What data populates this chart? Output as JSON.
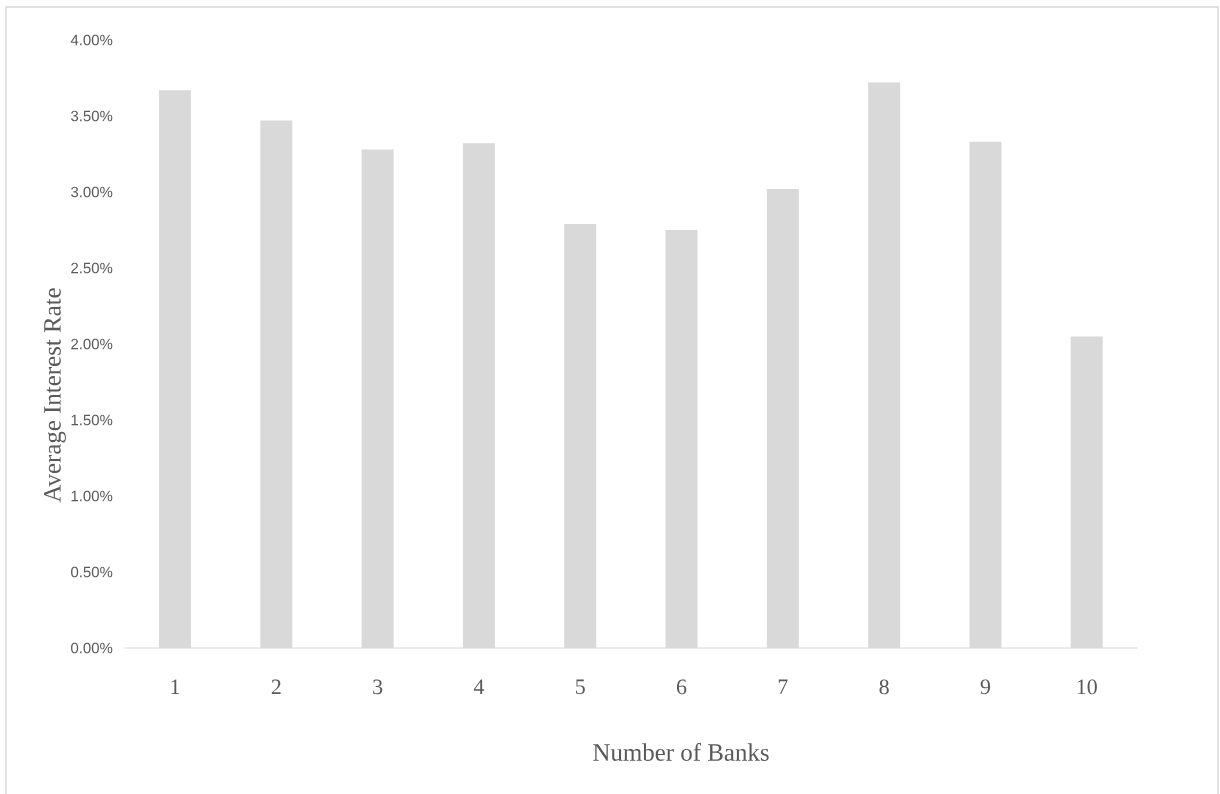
{
  "chart_data": {
    "type": "bar",
    "xlabel": "Number of Banks",
    "ylabel": "Average Interest Rate",
    "categories": [
      "1",
      "2",
      "3",
      "4",
      "5",
      "6",
      "7",
      "8",
      "9",
      "10"
    ],
    "values": [
      3.67,
      3.47,
      3.28,
      3.32,
      2.79,
      2.75,
      3.02,
      3.72,
      3.33,
      2.05
    ],
    "color": "#d9d9d9",
    "ylim": [
      0,
      4
    ],
    "yticks": [
      {
        "value": 0,
        "label": "0.00%"
      },
      {
        "value": 0.5,
        "label": "0.50%"
      },
      {
        "value": 1,
        "label": "1.00%"
      },
      {
        "value": 1.5,
        "label": "1.50%"
      },
      {
        "value": 2,
        "label": "2.00%"
      },
      {
        "value": 2.5,
        "label": "2.50%"
      },
      {
        "value": 3,
        "label": "3.00%"
      },
      {
        "value": 3.5,
        "label": "3.50%"
      },
      {
        "value": 4,
        "label": "4.00%"
      }
    ],
    "grid": false
  }
}
